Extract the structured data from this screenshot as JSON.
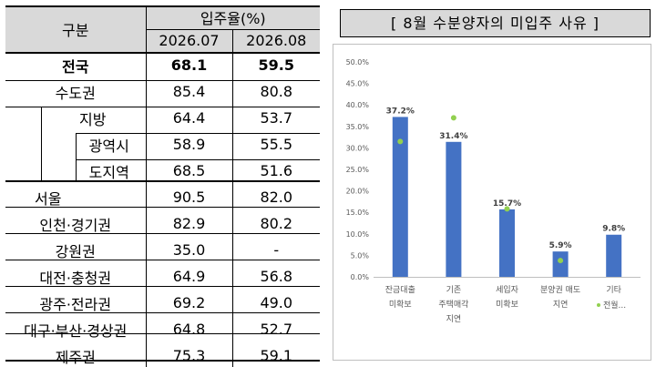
{
  "table": {
    "header_category": "구분",
    "header_group": "입주율(%)",
    "header_periods": [
      "2026.07",
      "2026.08"
    ],
    "rows": [
      {
        "name": "전국",
        "v1": "68.1",
        "v2": "59.5"
      },
      {
        "name": "수도권",
        "v1": "85.4",
        "v2": "80.8"
      },
      {
        "name": "지방",
        "v1": "64.4",
        "v2": "53.7"
      },
      {
        "name": "광역시",
        "v1": "58.9",
        "v2": "55.5"
      },
      {
        "name": "도지역",
        "v1": "68.5",
        "v2": "51.6"
      },
      {
        "name": "서울",
        "v1": "90.5",
        "v2": "82.0"
      },
      {
        "name": "인천·경기권",
        "v1": "82.9",
        "v2": "80.2"
      },
      {
        "name": "강원권",
        "v1": "35.0",
        "v2": "-"
      },
      {
        "name": "대전·충청권",
        "v1": "64.9",
        "v2": "56.8"
      },
      {
        "name": "광주·전라권",
        "v1": "69.2",
        "v2": "49.0"
      },
      {
        "name": "대구·부산·경상권",
        "v1": "64.8",
        "v2": "52.7"
      },
      {
        "name": "제주권",
        "v1": "75.3",
        "v2": "59.1"
      }
    ]
  },
  "chart_data": {
    "type": "bar",
    "title": "[ 8월 수분양자의 미입주 사유 ]",
    "categories": [
      [
        "잔금대출",
        "미확보"
      ],
      [
        "기존",
        "주택매각",
        "지연"
      ],
      [
        "세입자",
        "미확보"
      ],
      [
        "분양권 매도",
        "지연"
      ],
      [
        "기타"
      ]
    ],
    "series": [
      {
        "values": [
          37.2,
          31.4,
          15.7,
          5.9,
          9.8
        ],
        "data_labels": [
          "37.2%",
          "31.4%",
          "15.7%",
          "5.9%",
          "9.8%"
        ]
      },
      {
        "name": "전월...",
        "values": [
          31.5,
          37.0,
          15.8,
          3.8,
          null
        ]
      }
    ],
    "y_ticks": [
      "0.0%",
      "5.0%",
      "10.0%",
      "15.0%",
      "20.0%",
      "25.0%",
      "30.0%",
      "35.0%",
      "40.0%",
      "45.0%",
      "50.0%"
    ],
    "ylim": [
      0,
      50
    ],
    "grid": false,
    "legend_placement": "bottom-right",
    "colors": {
      "bar": "#4472c4",
      "marker": "#92d050"
    }
  }
}
